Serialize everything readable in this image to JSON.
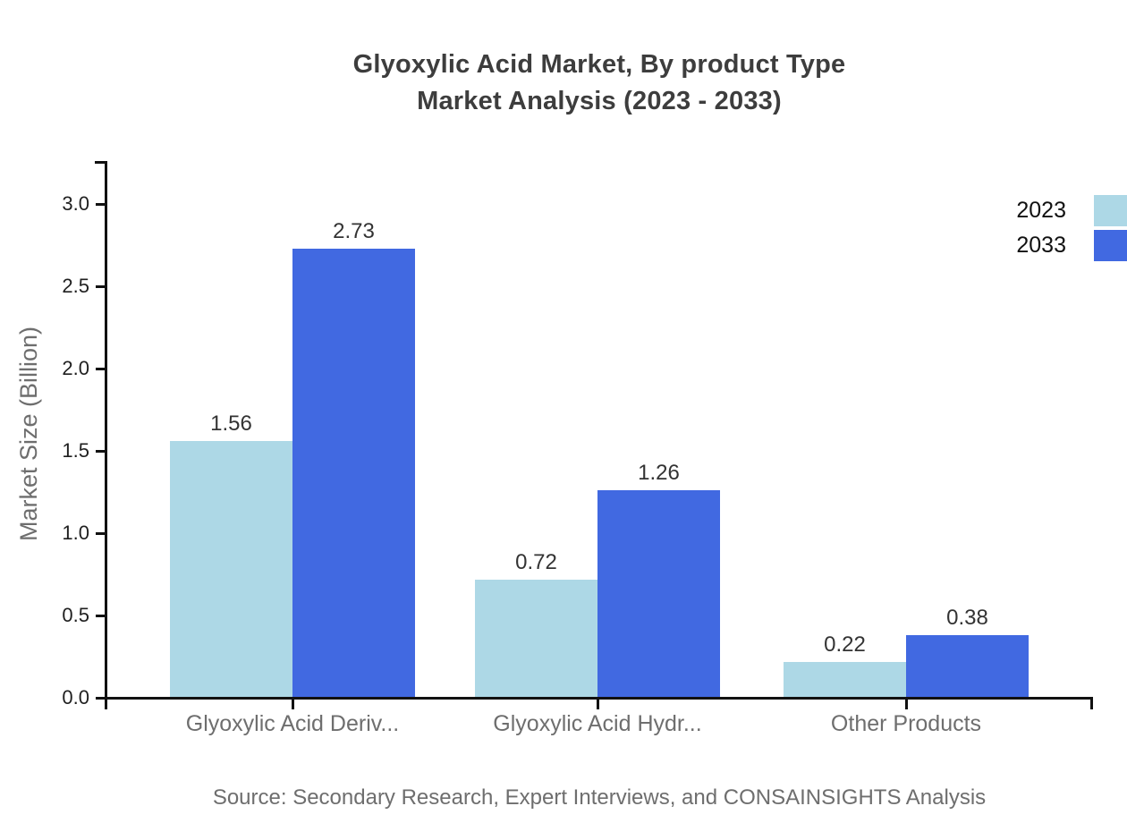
{
  "title": {
    "line1": "Glyoxylic Acid Market, By product Type",
    "line2": "Market Analysis (2023 - 2033)"
  },
  "legend": {
    "items": [
      {
        "label": "2023",
        "color": "#add8e6"
      },
      {
        "label": "2033",
        "color": "#4169e1"
      }
    ]
  },
  "chart_data": {
    "type": "bar",
    "title": "Glyoxylic Acid Market, By product Type Market Analysis (2023 - 2033)",
    "categories": [
      "Glyoxylic Acid Deriv...",
      "Glyoxylic Acid Hydr...",
      "Other Products"
    ],
    "series": [
      {
        "name": "2023",
        "color": "#add8e6",
        "values": [
          1.56,
          0.72,
          0.22
        ]
      },
      {
        "name": "2033",
        "color": "#4169e1",
        "values": [
          2.73,
          1.26,
          0.38
        ]
      }
    ],
    "xlabel": "",
    "ylabel": "Market Size (Billion)",
    "ylim": [
      0,
      3.26
    ],
    "yticks": [
      0.0,
      0.5,
      1.0,
      1.5,
      2.0,
      2.5,
      3.0
    ],
    "grid": false,
    "legend_position": "top-right",
    "value_labels": true
  },
  "source": {
    "text": "Source: Secondary Research, Expert Interviews, and CONSAINSIGHTS Analysis"
  },
  "colors": {
    "series_2023": "#add8e6",
    "series_2033": "#4169e1",
    "axis": "#111111",
    "tick_label": "#1f1f1f",
    "value_label": "#333333",
    "muted_text": "#6e6e6e",
    "title_text": "#3d3d3d",
    "background": "#ffffff"
  }
}
